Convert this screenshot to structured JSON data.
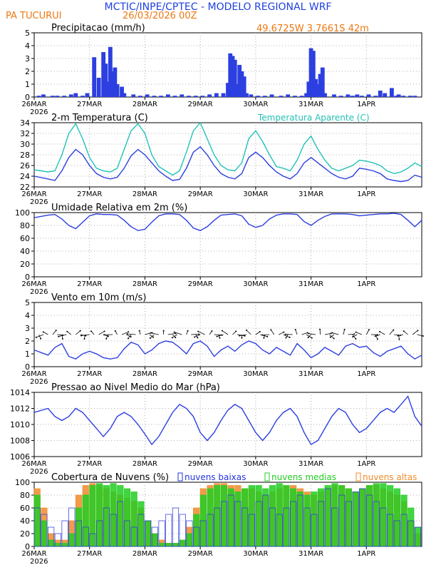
{
  "header": {
    "title": "MCTIC/INPE/CPTEC - MODELO REGIONAL WRF",
    "station": "PA TUCURUI",
    "run": "26/03/2026 00Z",
    "coords": "49.6725W 3.7661S 42m"
  },
  "colors": {
    "title": "#1f3fe0",
    "header_orange": "#ee7711",
    "main_line": "#2c3fe0",
    "apparent_temp": "#22c2b6",
    "low_clouds": "#2233dd",
    "mid_clouds": "#22cc22",
    "high_clouds": "#f08a2a",
    "wind_vector": "#000000"
  },
  "time_axis": {
    "labels": [
      "26MAR",
      "27MAR",
      "28MAR",
      "29MAR",
      "30MAR",
      "31MAR",
      "1APR"
    ],
    "year_label": "2026",
    "hours_total": 168,
    "tick_every_h": 24
  },
  "chart_data": [
    {
      "id": "precip",
      "type": "bar",
      "title": "Precipitacao (mm/h)",
      "ylim": [
        0,
        5
      ],
      "yticks": [
        0,
        1,
        2,
        3,
        4,
        5
      ],
      "x_hours": [
        2,
        4,
        8,
        10,
        13,
        16,
        18,
        21,
        23,
        26,
        28,
        30,
        31,
        32,
        33,
        34,
        35,
        36,
        38,
        39,
        43,
        46,
        49,
        52,
        55,
        58,
        61,
        64,
        67,
        70,
        73,
        76,
        79,
        82,
        84,
        85,
        86,
        87,
        88,
        89,
        90,
        91,
        92,
        94,
        97,
        100,
        103,
        107,
        110,
        113,
        116,
        118,
        119,
        120,
        121,
        122,
        123,
        124,
        125,
        126,
        130,
        133,
        136,
        138,
        140,
        142,
        145,
        148,
        150,
        152,
        155,
        157,
        158,
        160,
        163,
        165
      ],
      "values": [
        0.1,
        0.2,
        0.1,
        0.1,
        0.1,
        0.2,
        0.3,
        0.1,
        0.3,
        3.1,
        1.5,
        3.5,
        2.6,
        1.2,
        3.9,
        2.0,
        2.3,
        1.0,
        0.8,
        0.3,
        0.2,
        0.1,
        0.2,
        0.1,
        0.1,
        0.2,
        0.1,
        0.2,
        0.1,
        0.1,
        0.1,
        0.2,
        0.3,
        0.3,
        1.1,
        3.4,
        3.2,
        2.9,
        1.0,
        2.5,
        2.0,
        1.6,
        0.3,
        0.2,
        0.1,
        0.1,
        0.2,
        0.1,
        0.2,
        0.1,
        0.1,
        0.3,
        1.2,
        3.8,
        3.6,
        1.4,
        1.0,
        1.8,
        2.3,
        0.3,
        0.2,
        0.1,
        0.2,
        0.1,
        0.2,
        0.1,
        0.2,
        0.1,
        0.5,
        0.3,
        0.7,
        0.1,
        0.2,
        0.1,
        0.1,
        0.1
      ]
    },
    {
      "id": "temp",
      "type": "line",
      "title": "2-m Temperatura (C)",
      "legend": "Temperatura Aparente (C)",
      "ylim": [
        22,
        34
      ],
      "yticks": [
        22,
        24,
        26,
        28,
        30,
        32,
        34
      ],
      "series": [
        {
          "name": "Temperatura (C)",
          "x": [
            0,
            6,
            9,
            12,
            15,
            18,
            21,
            24,
            27,
            30,
            33,
            36,
            39,
            42,
            45,
            48,
            51,
            54,
            57,
            60,
            63,
            66,
            69,
            72,
            75,
            78,
            81,
            84,
            87,
            90,
            93,
            96,
            99,
            102,
            105,
            108,
            111,
            114,
            117,
            120,
            123,
            126,
            129,
            132,
            135,
            138,
            141,
            144,
            147,
            150,
            153,
            156,
            159,
            162,
            165,
            168
          ],
          "values": [
            24,
            23.5,
            23.2,
            25,
            27.5,
            29,
            28,
            26,
            24.5,
            23.8,
            23.5,
            23.8,
            25.5,
            27.8,
            29,
            28,
            26.5,
            25,
            24,
            23.2,
            23.4,
            25.5,
            28.5,
            29.5,
            28,
            26,
            24.5,
            23.8,
            23.5,
            24.5,
            27.5,
            28.5,
            27.5,
            26,
            24.8,
            24,
            23.5,
            24.5,
            26.5,
            27.5,
            26.5,
            25.5,
            24.5,
            23.8,
            23.5,
            24,
            25.5,
            25.3,
            25,
            24.5,
            23.5,
            23.2,
            23,
            23.2,
            24.2,
            23.8
          ]
        },
        {
          "name": "Temperatura Aparente (C)",
          "x": [
            0,
            6,
            9,
            12,
            15,
            18,
            21,
            24,
            27,
            30,
            33,
            36,
            39,
            42,
            45,
            48,
            51,
            54,
            57,
            60,
            63,
            66,
            69,
            72,
            75,
            78,
            81,
            84,
            87,
            90,
            93,
            96,
            99,
            102,
            105,
            108,
            111,
            114,
            117,
            120,
            123,
            126,
            129,
            132,
            135,
            138,
            141,
            144,
            147,
            150,
            153,
            156,
            159,
            162,
            165,
            168
          ],
          "values": [
            25.2,
            24.8,
            25,
            28,
            32,
            33.8,
            31,
            27.5,
            25.5,
            25,
            24.8,
            25.5,
            29,
            32.5,
            33.8,
            32,
            28,
            25.8,
            25,
            24.2,
            25,
            28.5,
            32.5,
            34,
            31,
            28,
            26,
            25.2,
            25,
            26.5,
            31,
            32.5,
            30.5,
            28,
            25.8,
            25.5,
            25,
            27,
            30,
            31.5,
            29,
            27,
            25.5,
            25,
            25.5,
            26,
            27,
            26.8,
            26.5,
            26,
            25,
            24.5,
            24.8,
            25.5,
            26.5,
            25.8
          ]
        }
      ]
    },
    {
      "id": "rh",
      "type": "line",
      "title": "Umidade Relativa em 2m (%)",
      "ylim": [
        0,
        100
      ],
      "yticks": [
        0,
        20,
        40,
        60,
        80,
        100
      ],
      "x": [
        0,
        6,
        9,
        12,
        15,
        18,
        21,
        24,
        27,
        30,
        33,
        36,
        39,
        42,
        45,
        48,
        51,
        54,
        57,
        60,
        63,
        66,
        69,
        72,
        75,
        78,
        81,
        84,
        87,
        90,
        93,
        96,
        99,
        102,
        105,
        108,
        111,
        114,
        117,
        120,
        123,
        126,
        129,
        132,
        135,
        138,
        141,
        144,
        147,
        150,
        153,
        156,
        159,
        162,
        165,
        168
      ],
      "values": [
        92,
        96,
        97,
        90,
        80,
        75,
        85,
        95,
        98,
        97,
        97,
        96,
        88,
        78,
        72,
        74,
        85,
        95,
        98,
        98,
        97,
        88,
        76,
        72,
        78,
        88,
        96,
        97,
        98,
        95,
        82,
        77,
        80,
        90,
        96,
        98,
        98,
        97,
        86,
        80,
        88,
        94,
        98,
        98,
        98,
        97,
        95,
        96,
        97,
        98,
        98,
        99,
        97,
        88,
        78,
        88
      ]
    },
    {
      "id": "wind",
      "type": "line",
      "title": "Vento em 10m (m/s)",
      "ylim": [
        0,
        5
      ],
      "yticks": [
        0,
        1,
        2,
        3,
        4,
        5
      ],
      "x": [
        0,
        6,
        9,
        12,
        15,
        18,
        21,
        24,
        27,
        30,
        33,
        36,
        39,
        42,
        45,
        48,
        51,
        54,
        57,
        60,
        63,
        66,
        69,
        72,
        75,
        78,
        81,
        84,
        87,
        90,
        93,
        96,
        99,
        102,
        105,
        108,
        111,
        114,
        117,
        120,
        123,
        126,
        129,
        132,
        135,
        138,
        141,
        144,
        147,
        150,
        153,
        156,
        159,
        162,
        165,
        168
      ],
      "values": [
        1.3,
        0.9,
        1.5,
        1.8,
        0.8,
        0.6,
        1.0,
        1.2,
        1.0,
        0.7,
        0.6,
        0.7,
        1.4,
        1.9,
        1.7,
        1.0,
        1.3,
        1.8,
        2.0,
        1.9,
        1.5,
        1.0,
        1.8,
        2.0,
        1.6,
        0.8,
        1.3,
        1.6,
        1.2,
        1.7,
        2.0,
        1.8,
        1.3,
        1.0,
        1.5,
        1.2,
        0.9,
        1.8,
        1.3,
        0.7,
        1.0,
        1.5,
        1.2,
        0.9,
        1.6,
        1.8,
        1.5,
        1.6,
        1.1,
        0.8,
        1.2,
        1.4,
        1.6,
        1.0,
        0.6,
        0.9
      ]
    },
    {
      "id": "pressure",
      "type": "line",
      "title": "Pressao ao Nivel Medio do Mar (hPa)",
      "ylim": [
        1006,
        1014
      ],
      "yticks": [
        1006,
        1008,
        1010,
        1012,
        1014
      ],
      "x": [
        0,
        6,
        9,
        12,
        15,
        18,
        21,
        24,
        27,
        30,
        33,
        36,
        39,
        42,
        45,
        48,
        51,
        54,
        57,
        60,
        63,
        66,
        69,
        72,
        75,
        78,
        81,
        84,
        87,
        90,
        93,
        96,
        99,
        102,
        105,
        108,
        111,
        114,
        117,
        120,
        123,
        126,
        129,
        132,
        135,
        138,
        141,
        144,
        147,
        150,
        153,
        156,
        159,
        162,
        165,
        168
      ],
      "values": [
        1011.5,
        1012,
        1011,
        1010.5,
        1011,
        1012,
        1011.5,
        1010.5,
        1009.5,
        1008.5,
        1009.5,
        1011,
        1011.5,
        1011,
        1010,
        1008.8,
        1007.5,
        1008.5,
        1010,
        1011.5,
        1012.5,
        1012,
        1011,
        1009,
        1008,
        1009,
        1010.5,
        1011.8,
        1012.5,
        1012,
        1010.5,
        1009,
        1008,
        1009,
        1010.5,
        1011.5,
        1012,
        1011,
        1009,
        1007.5,
        1008,
        1009.5,
        1011,
        1012,
        1011.5,
        1010,
        1009,
        1009.5,
        1010.5,
        1011.5,
        1012,
        1011.5,
        1012.5,
        1013.5,
        1011,
        1009.8
      ]
    },
    {
      "id": "clouds",
      "type": "bar",
      "title": "Cobertura de Nuvens (%)",
      "legend": [
        "nuvens baixas",
        "nuvens medias",
        "nuvens altas"
      ],
      "ylim": [
        0,
        100
      ],
      "yticks": [
        0,
        20,
        40,
        60,
        80,
        100
      ],
      "x_hours": [
        0,
        3,
        6,
        9,
        12,
        15,
        18,
        21,
        24,
        27,
        30,
        33,
        36,
        39,
        42,
        45,
        48,
        51,
        54,
        57,
        60,
        63,
        66,
        69,
        72,
        75,
        78,
        81,
        84,
        87,
        90,
        93,
        96,
        99,
        102,
        105,
        108,
        111,
        114,
        117,
        120,
        123,
        126,
        129,
        132,
        135,
        138,
        141,
        144,
        147,
        150,
        153,
        156,
        159,
        162,
        165
      ],
      "series": [
        {
          "name": "nuvens altas",
          "values": [
            90,
            60,
            20,
            10,
            10,
            40,
            80,
            95,
            98,
            95,
            90,
            85,
            80,
            75,
            70,
            60,
            40,
            20,
            10,
            5,
            5,
            10,
            30,
            60,
            90,
            95,
            98,
            98,
            95,
            95,
            90,
            90,
            85,
            80,
            85,
            90,
            95,
            95,
            90,
            85,
            80,
            85,
            90,
            95,
            95,
            90,
            85,
            90,
            95,
            95,
            90,
            85,
            80,
            70,
            40,
            20
          ]
        },
        {
          "name": "nuvens medias",
          "values": [
            80,
            40,
            10,
            5,
            5,
            20,
            60,
            80,
            95,
            98,
            95,
            98,
            95,
            90,
            85,
            70,
            40,
            20,
            5,
            5,
            5,
            10,
            20,
            50,
            80,
            90,
            95,
            95,
            90,
            85,
            90,
            95,
            95,
            90,
            95,
            98,
            95,
            90,
            85,
            80,
            85,
            90,
            95,
            98,
            95,
            90,
            85,
            90,
            95,
            98,
            98,
            95,
            90,
            80,
            60,
            30
          ]
        },
        {
          "name": "nuvens baixas",
          "values": [
            60,
            50,
            30,
            20,
            40,
            60,
            40,
            30,
            20,
            40,
            60,
            50,
            70,
            40,
            30,
            50,
            40,
            30,
            40,
            50,
            60,
            50,
            40,
            30,
            40,
            50,
            60,
            70,
            80,
            70,
            60,
            50,
            70,
            80,
            60,
            50,
            60,
            70,
            80,
            60,
            50,
            70,
            90,
            60,
            80,
            70,
            85,
            90,
            80,
            70,
            60,
            50,
            40,
            50,
            40,
            30
          ]
        }
      ]
    }
  ]
}
